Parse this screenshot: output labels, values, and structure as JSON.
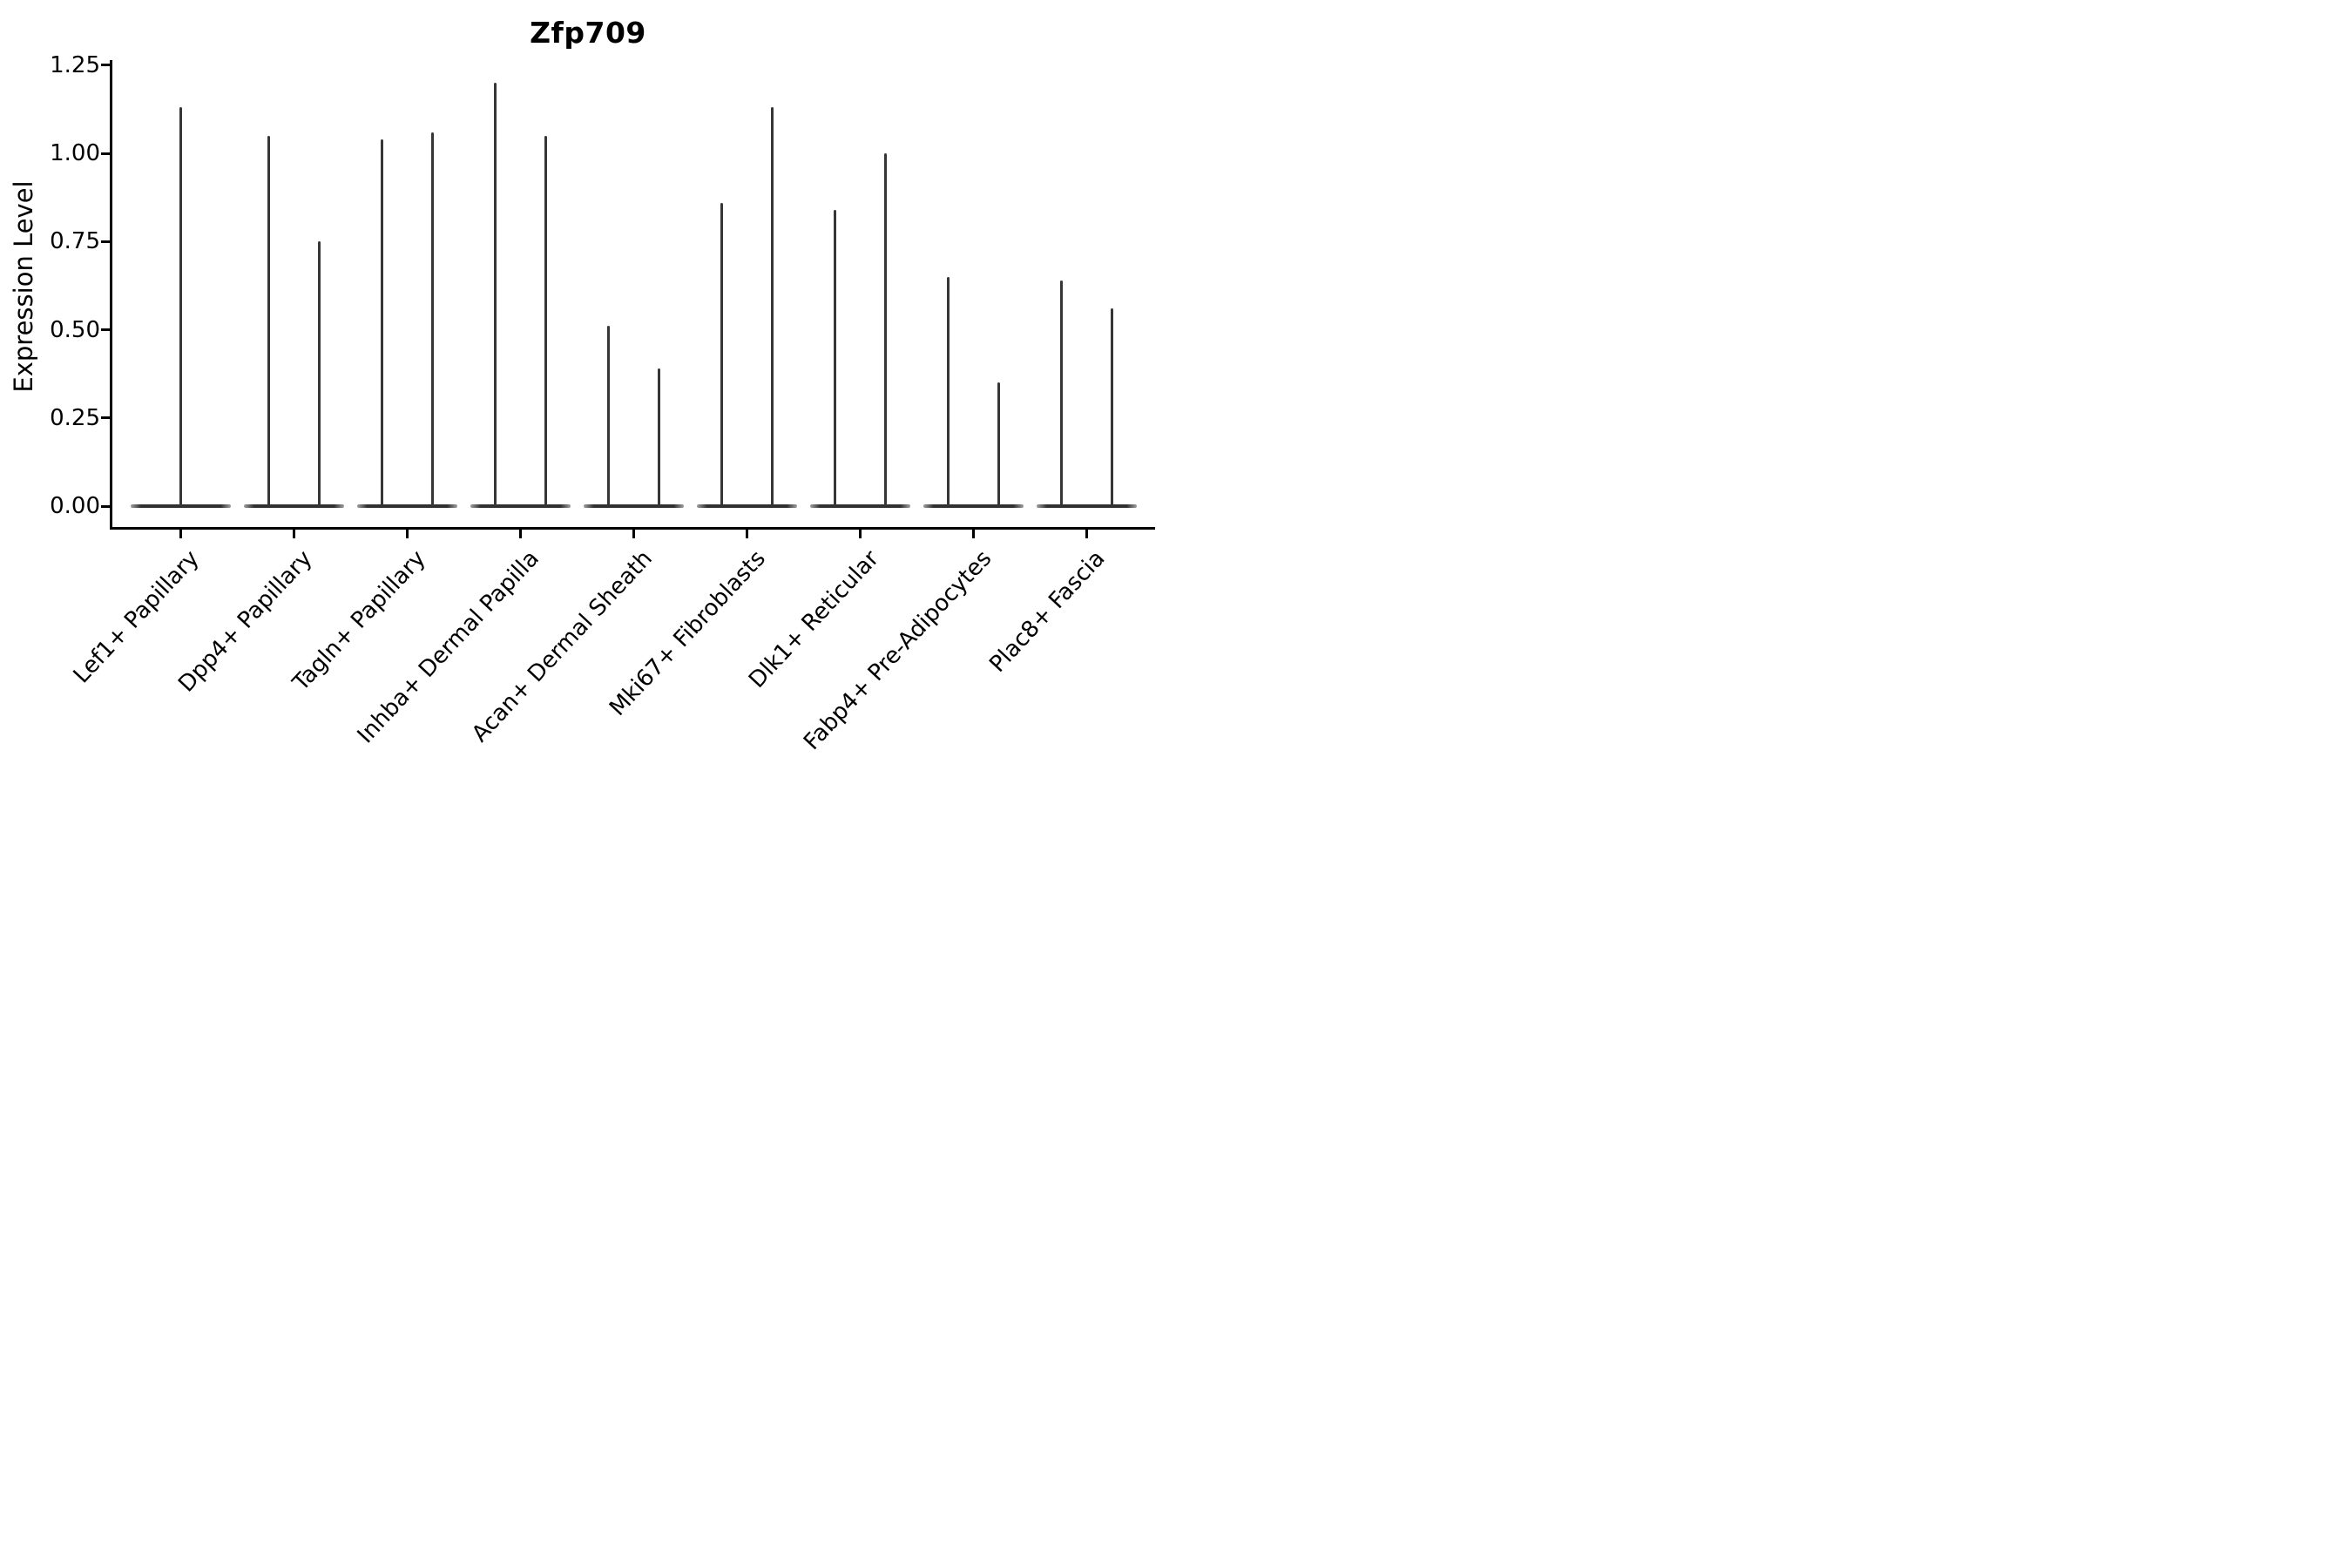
{
  "title": "Zfp709",
  "axes": {
    "ylabel": "Expression Level",
    "ytick_labels": [
      "0.00",
      "0.25",
      "0.50",
      "0.75",
      "1.00",
      "1.25"
    ]
  },
  "colors": {
    "violin_fill": "#363636",
    "violin_base_edge": "#a0a0a0",
    "axis": "#000000",
    "background": "#ffffff"
  },
  "chart_data": {
    "type": "violin",
    "title": "Zfp709",
    "xlabel": "",
    "ylabel": "Expression Level",
    "ylim": [
      0,
      1.25
    ],
    "yticks": [
      0,
      0.25,
      0.5,
      0.75,
      1.0,
      1.25
    ],
    "grid": false,
    "legend": "none",
    "description": "Flat violins at 0 with thin spikes; Lef1+ has one centered spike, all other categories have two side-by-side spikes (max expression values listed left-to-right).",
    "categories": [
      "Lef1+ Papillary",
      "Dpp4+ Papillary",
      "Tagln+ Papillary",
      "Inhba+ Dermal Papilla",
      "Acan+ Dermal Sheath",
      "Mki67+ Fibroblasts",
      "Dlk1+ Reticular",
      "Fabp4+ Pre-Adipocytes",
      "Plac8+ Fascia"
    ],
    "series": [
      {
        "category": "Lef1+ Papillary",
        "spike_max_values": [
          1.13
        ]
      },
      {
        "category": "Dpp4+ Papillary",
        "spike_max_values": [
          1.05,
          0.75
        ]
      },
      {
        "category": "Tagln+ Papillary",
        "spike_max_values": [
          1.04,
          1.06
        ]
      },
      {
        "category": "Inhba+ Dermal Papilla",
        "spike_max_values": [
          1.2,
          1.05
        ]
      },
      {
        "category": "Acan+ Dermal Sheath",
        "spike_max_values": [
          0.51,
          0.39
        ]
      },
      {
        "category": "Mki67+ Fibroblasts",
        "spike_max_values": [
          0.86,
          1.13
        ]
      },
      {
        "category": "Dlk1+ Reticular",
        "spike_max_values": [
          0.84,
          1.0
        ]
      },
      {
        "category": "Fabp4+ Pre-Adipocytes",
        "spike_max_values": [
          0.65,
          0.35
        ]
      },
      {
        "category": "Plac8+ Fascia",
        "spike_max_values": [
          0.64,
          0.56
        ]
      }
    ]
  }
}
